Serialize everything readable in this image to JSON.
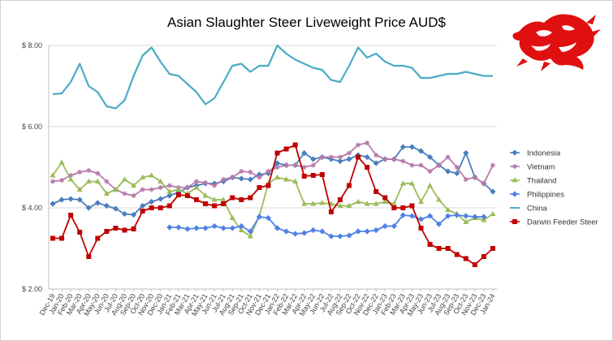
{
  "chart_data": {
    "type": "line",
    "title": "Asian Slaughter Steer Liveweight Price AUD$",
    "xlabel": "",
    "ylabel": "",
    "ylim": [
      2.0,
      8.0
    ],
    "y_ticks": [
      "$ 2.00",
      "$ 4.00",
      "$ 6.00",
      "$ 8.00"
    ],
    "y_tick_values": [
      2.0,
      4.0,
      6.0,
      8.0
    ],
    "grid": true,
    "legend_position": "right",
    "categories": [
      "Dec-19",
      "Jan-20",
      "Feb-20",
      "Mar-20",
      "Apr-20",
      "May-20",
      "Jun-20",
      "Jul-20",
      "Aug-20",
      "Sep-20",
      "Oct-20",
      "Nov-20",
      "Dec-20",
      "Jan-21",
      "Feb-21",
      "Mar-21",
      "Apr-21",
      "May-21",
      "Jun-21",
      "Jul-21",
      "Aug-21",
      "Sep-21",
      "Oct-21",
      "Nov-21",
      "Dec-21",
      "Jan-22",
      "Feb-22",
      "Mar-22",
      "Apr-22",
      "May-22",
      "Jun-22",
      "Jul-22",
      "Aug-22",
      "Sep-22",
      "Oct-22",
      "Nov-22",
      "Dec-22",
      "Jan-23",
      "Feb-23",
      "Mar-23",
      "Apr-23",
      "May-23",
      "Jun-23",
      "Jul-23",
      "Aug-23",
      "Sep-23",
      "Oct-23",
      "Nov-23",
      "Dec-23",
      "Jan-24"
    ],
    "series": [
      {
        "name": "Indonesia",
        "color": "#4a7ebb",
        "marker": "diamond",
        "values": [
          4.1,
          4.2,
          4.22,
          4.2,
          4.0,
          4.12,
          4.05,
          3.98,
          3.85,
          3.83,
          4.05,
          4.15,
          4.22,
          4.3,
          4.38,
          4.5,
          4.55,
          4.6,
          4.6,
          4.65,
          4.75,
          4.72,
          4.7,
          4.82,
          4.85,
          5.1,
          5.05,
          5.05,
          5.35,
          5.2,
          5.25,
          5.2,
          5.15,
          5.2,
          5.3,
          5.25,
          5.1,
          5.2,
          5.2,
          5.5,
          5.5,
          5.4,
          5.25,
          5.05,
          4.9,
          4.85,
          5.35,
          4.75,
          4.6,
          4.4
        ]
      },
      {
        "name": "Vietnam",
        "color": "#b77aaa",
        "marker": "star",
        "values": [
          4.65,
          4.68,
          4.8,
          4.88,
          4.92,
          4.85,
          4.65,
          4.45,
          4.35,
          4.3,
          4.45,
          4.45,
          4.5,
          4.55,
          4.5,
          4.5,
          4.65,
          4.62,
          4.55,
          4.7,
          4.75,
          4.9,
          4.88,
          4.75,
          4.9,
          5.0,
          5.05,
          5.05,
          5.0,
          5.05,
          5.25,
          5.25,
          5.25,
          5.35,
          5.55,
          5.6,
          5.3,
          5.2,
          5.2,
          5.15,
          5.05,
          5.05,
          4.9,
          5.05,
          5.25,
          5.0,
          4.7,
          4.75,
          4.6,
          5.05
        ]
      },
      {
        "name": "Thailand",
        "color": "#9bbb59",
        "marker": "triangle",
        "values": [
          4.8,
          5.12,
          4.7,
          4.45,
          4.65,
          4.65,
          4.35,
          4.45,
          4.7,
          4.55,
          4.75,
          4.8,
          4.65,
          4.4,
          4.45,
          4.35,
          4.5,
          4.3,
          4.2,
          4.2,
          3.75,
          3.45,
          3.3,
          3.8,
          4.6,
          4.75,
          4.7,
          4.65,
          4.1,
          4.1,
          4.12,
          4.1,
          4.05,
          4.05,
          4.15,
          4.1,
          4.1,
          4.15,
          4.1,
          4.6,
          4.6,
          4.15,
          4.55,
          4.2,
          3.95,
          3.85,
          3.65,
          3.75,
          3.7,
          3.85
        ]
      },
      {
        "name": "Philippines",
        "color": "#4f81e6",
        "marker": "diamond",
        "values": [
          null,
          null,
          null,
          null,
          null,
          null,
          null,
          null,
          null,
          null,
          null,
          null,
          null,
          3.52,
          3.52,
          3.48,
          3.5,
          3.5,
          3.55,
          3.5,
          3.5,
          3.55,
          3.42,
          3.78,
          3.75,
          3.5,
          3.42,
          3.36,
          3.38,
          3.45,
          3.42,
          3.3,
          3.3,
          3.32,
          3.42,
          3.42,
          3.45,
          3.55,
          3.55,
          3.82,
          3.8,
          3.72,
          3.8,
          3.6,
          3.8,
          3.82,
          3.8,
          3.78,
          3.78,
          null
        ]
      },
      {
        "name": "China",
        "color": "#4bacc6",
        "marker": "none",
        "values": [
          6.8,
          6.82,
          7.1,
          7.55,
          7.0,
          6.85,
          6.5,
          6.45,
          6.65,
          7.25,
          7.75,
          7.95,
          7.6,
          7.3,
          7.25,
          7.05,
          6.85,
          6.55,
          6.7,
          7.1,
          7.5,
          7.55,
          7.35,
          7.5,
          7.5,
          8.0,
          7.8,
          7.65,
          7.55,
          7.45,
          7.4,
          7.15,
          7.1,
          7.5,
          7.95,
          7.7,
          7.8,
          7.6,
          7.5,
          7.5,
          7.45,
          7.2,
          7.2,
          7.25,
          7.3,
          7.3,
          7.35,
          7.3,
          7.25,
          7.25
        ]
      },
      {
        "name": "Darwin Feeder Steer",
        "color": "#c00000",
        "marker": "square",
        "values": [
          3.25,
          3.25,
          3.82,
          3.4,
          2.8,
          3.25,
          3.42,
          3.5,
          3.45,
          3.48,
          3.92,
          4.0,
          4.0,
          4.05,
          4.32,
          4.3,
          4.2,
          4.1,
          4.05,
          4.1,
          4.25,
          4.2,
          4.25,
          4.5,
          4.55,
          5.35,
          5.45,
          5.55,
          4.78,
          4.8,
          4.82,
          3.9,
          4.2,
          4.55,
          5.25,
          5.0,
          4.4,
          4.25,
          4.0,
          4.0,
          4.05,
          3.5,
          3.1,
          3.0,
          3.0,
          2.85,
          2.75,
          2.6,
          2.8,
          3.0
        ]
      }
    ]
  }
}
